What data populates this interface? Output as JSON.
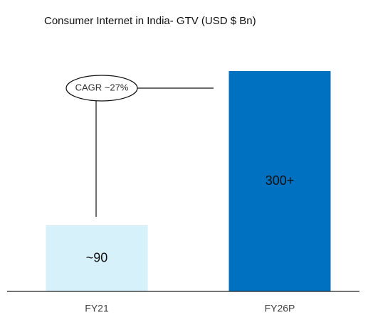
{
  "chart_data": {
    "type": "bar",
    "title": "Consumer Internet in India- GTV (USD $ Bn)",
    "categories": [
      "FY21",
      "FY26P"
    ],
    "values": [
      90,
      300
    ],
    "value_labels": [
      "~90",
      "300+"
    ],
    "colors": [
      "#d6f1f9",
      "#0070c0"
    ],
    "annotation": "CAGR ~27%"
  }
}
